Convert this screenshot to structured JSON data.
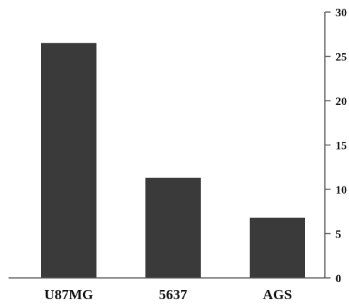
{
  "chart_data": {
    "type": "bar",
    "categories": [
      "U87MG",
      "5637",
      "AGS"
    ],
    "values": [
      26.5,
      11.3,
      6.8
    ],
    "title": "",
    "xlabel": "",
    "ylabel": "",
    "ylim": [
      0,
      30
    ],
    "yticks": [
      0,
      5,
      10,
      15,
      20,
      25,
      30
    ],
    "y_axis_side": "right",
    "grid": false,
    "legend": "none",
    "bar_color": "#3a3a3a",
    "axis_color": "#555555"
  }
}
